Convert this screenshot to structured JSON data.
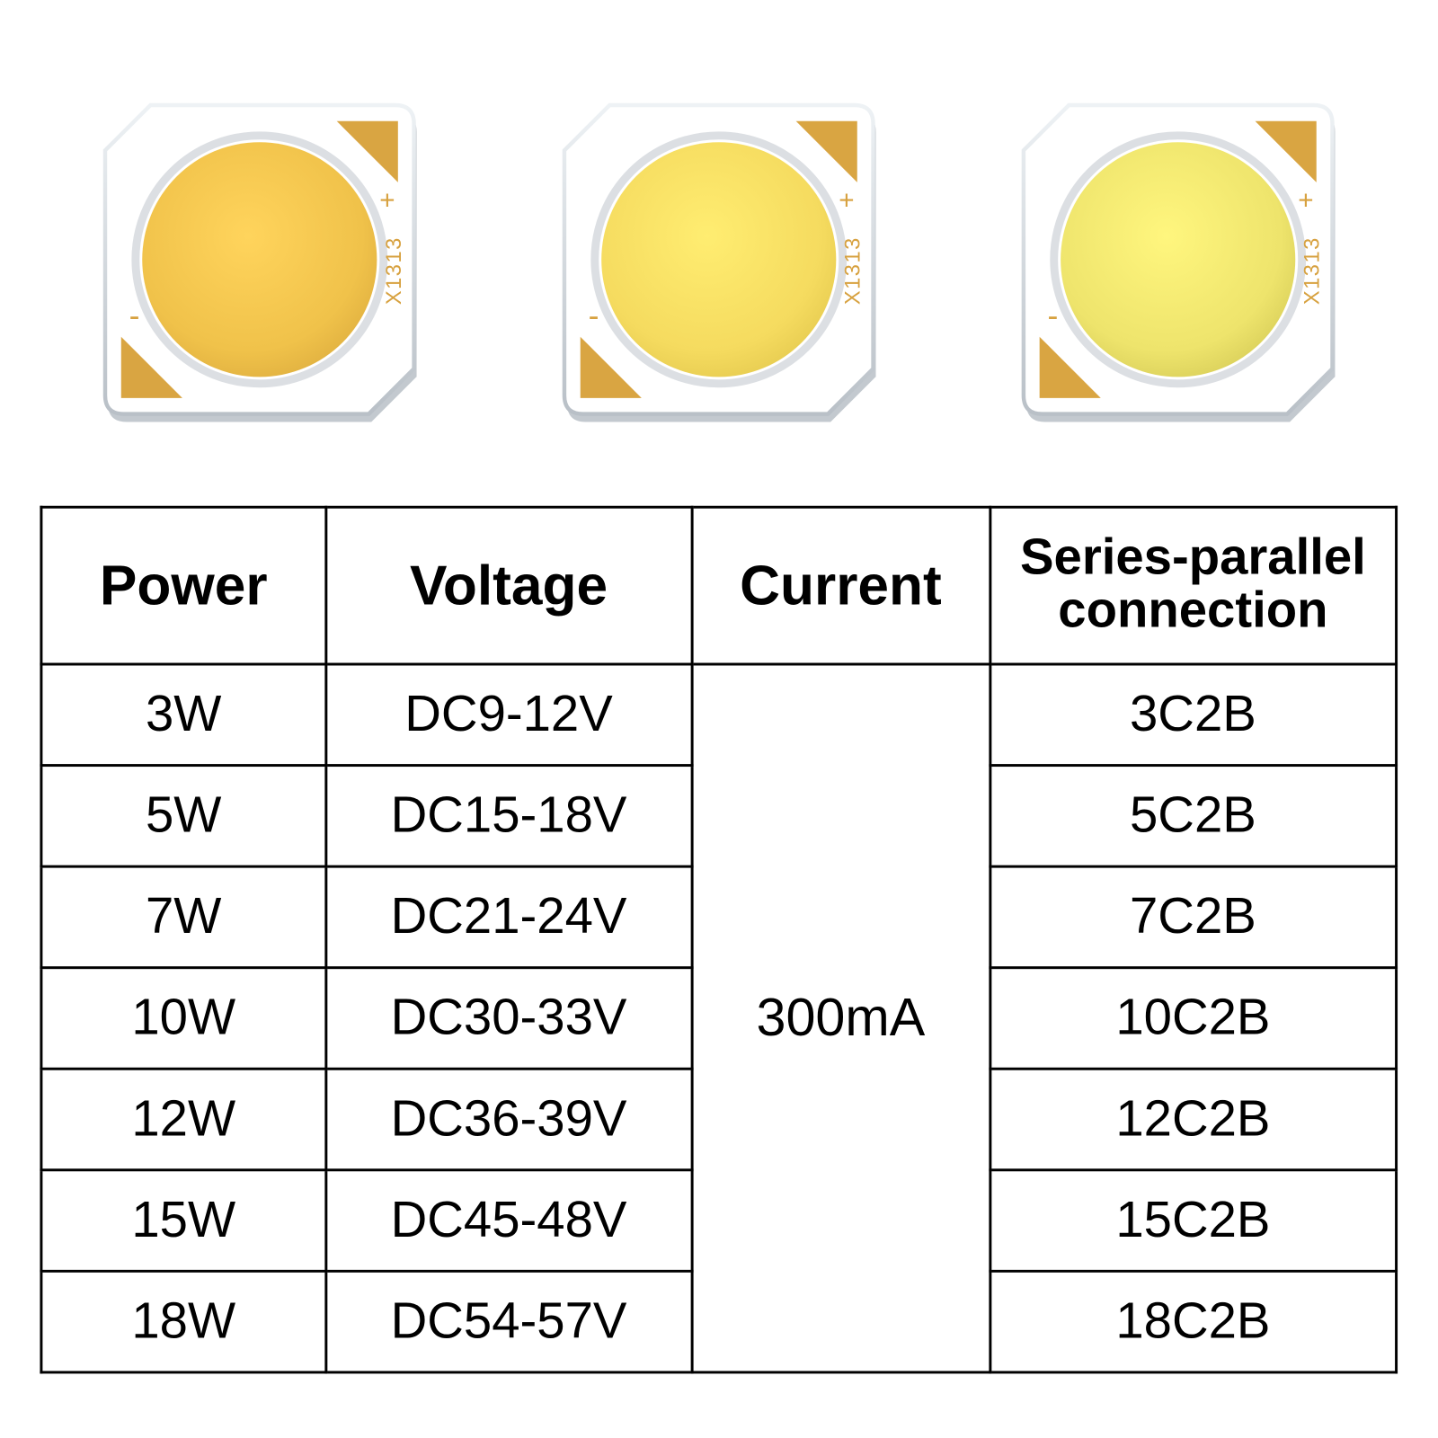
{
  "chips": [
    {
      "circle_fill": "#f0c24a",
      "circle_edge": "#e0b040",
      "tri_fill": "#d9a542",
      "text_color": "#d7a13f",
      "marking": "X1313"
    },
    {
      "circle_fill": "#f5db5f",
      "circle_edge": "#e6cb50",
      "tri_fill": "#d9a542",
      "text_color": "#d7a13f",
      "marking": "X1313"
    },
    {
      "circle_fill": "#eee46c",
      "circle_edge": "#d9cf5a",
      "tri_fill": "#d9a542",
      "text_color": "#d7a13f",
      "marking": "X1313"
    }
  ],
  "chip_style": {
    "body_fill": "#ffffff",
    "body_shadow": "#b9c0c7",
    "body_highlight": "#eef2f5",
    "corner_radius": 14
  },
  "table": {
    "columns": [
      "Power",
      "Voltage",
      "Current",
      "Series-parallel connection"
    ],
    "current": "300mA",
    "rows": [
      {
        "power": "3W",
        "voltage": "DC9-12V",
        "conn": "3C2B"
      },
      {
        "power": "5W",
        "voltage": "DC15-18V",
        "conn": "5C2B"
      },
      {
        "power": "7W",
        "voltage": "DC21-24V",
        "conn": "7C2B"
      },
      {
        "power": "10W",
        "voltage": "DC30-33V",
        "conn": "10C2B"
      },
      {
        "power": "12W",
        "voltage": "DC36-39V",
        "conn": "12C2B"
      },
      {
        "power": "15W",
        "voltage": "DC45-48V",
        "conn": "15C2B"
      },
      {
        "power": "18W",
        "voltage": "DC54-57V",
        "conn": "18C2B"
      }
    ],
    "border_color": "#000000",
    "header_fontsize_pt": 32,
    "cell_fontsize_pt": 28,
    "background": "#ffffff"
  }
}
